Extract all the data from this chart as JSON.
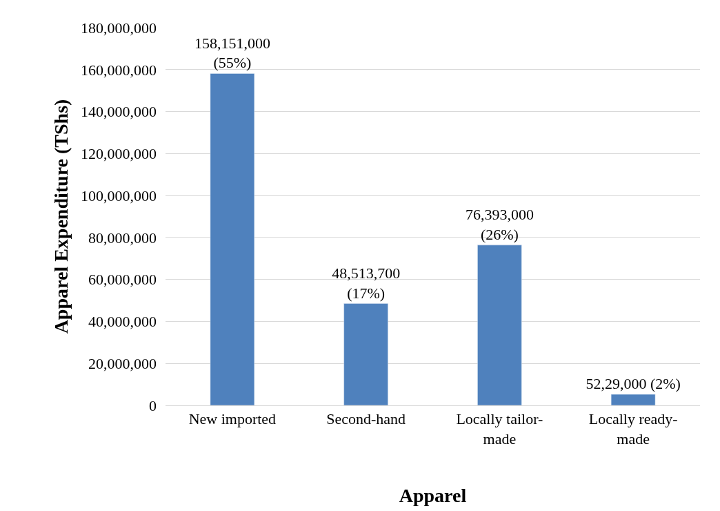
{
  "chart_data": {
    "type": "bar",
    "xlabel": "Apparel",
    "ylabel": "Apparel Expenditure (TShs)",
    "categories": [
      "New imported",
      "Second-hand",
      "Locally tailor-\nmade",
      "Locally ready-\nmade"
    ],
    "values": [
      158151000,
      48513700,
      76393000,
      5229000
    ],
    "value_labels": [
      "158,151,000\n(55%)",
      "48,513,700\n(17%)",
      "76,393,000\n(26%)",
      "52,29,000 (2%)"
    ],
    "color": "#4f81bd",
    "ylim": [
      0,
      180000000
    ],
    "yticks": [
      {
        "value": 0,
        "label": "0"
      },
      {
        "value": 20000000,
        "label": "20,000,000"
      },
      {
        "value": 40000000,
        "label": "40,000,000"
      },
      {
        "value": 60000000,
        "label": "60,000,000"
      },
      {
        "value": 80000000,
        "label": "80,000,000"
      },
      {
        "value": 100000000,
        "label": "100,000,000"
      },
      {
        "value": 120000000,
        "label": "120,000,000"
      },
      {
        "value": 140000000,
        "label": "140,000,000"
      },
      {
        "value": 160000000,
        "label": "160,000,000"
      },
      {
        "value": 180000000,
        "label": "180,000,000"
      }
    ],
    "grid": "y",
    "legend": false
  }
}
